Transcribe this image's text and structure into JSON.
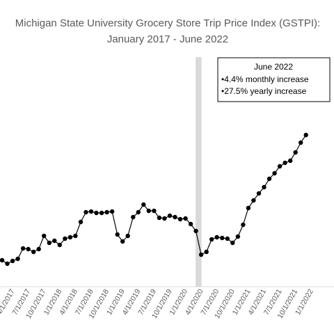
{
  "chart_data": {
    "type": "line",
    "title_lines": [
      "Michigan State University Grocery Store Trip Price Index (GSTPI):",
      "January 2017 - June 2022"
    ],
    "xlabel": "",
    "ylabel": "",
    "x_tick_labels": [
      "4/1/2017",
      "7/1/2017",
      "10/1/2017",
      "1/1/2018",
      "4/1/2018",
      "7/1/2018",
      "10/1/2018",
      "1/1/2019",
      "4/1/2019",
      "7/1/2019",
      "10/1/2019",
      "1/1/2020",
      "4/1/2020",
      "7/1/2020",
      "10/1/2020",
      "1/1/2021",
      "4/1/2021",
      "7/1/2021",
      "10/1/2021",
      "1/1/2022"
    ],
    "x_tick_month_index": [
      3,
      6,
      9,
      12,
      15,
      18,
      21,
      24,
      27,
      30,
      33,
      36,
      39,
      42,
      45,
      48,
      51,
      54,
      57,
      60
    ],
    "series": [
      {
        "name": "",
        "start_month": "2017-02",
        "values": [
          38,
          33,
          37,
          40,
          55,
          54,
          50,
          54,
          73,
          63,
          66,
          60,
          69,
          71,
          73,
          93,
          107,
          108,
          106,
          106,
          107,
          108,
          75,
          65,
          73,
          100,
          107,
          118,
          109,
          109,
          99,
          98,
          102,
          100,
          97,
          98,
          90,
          80,
          46,
          50,
          68,
          71,
          70,
          69,
          63,
          72,
          89,
          113,
          124,
          134,
          143,
          155,
          163,
          173,
          178,
          181,
          193,
          207,
          218
        ]
      }
    ],
    "highlight_band": {
      "start_month": "2020-03",
      "end_month": "2020-04",
      "color": "#d9d9d9"
    },
    "annotation": {
      "title": "June 2022",
      "lines": [
        "•4.4% monthly increase",
        "•27.5% yearly increase"
      ]
    },
    "colors": {
      "line": "#000000",
      "marker": "#000000",
      "text": "#595959",
      "band": "#d9d9d9"
    },
    "legend": "none",
    "grid": false
  }
}
